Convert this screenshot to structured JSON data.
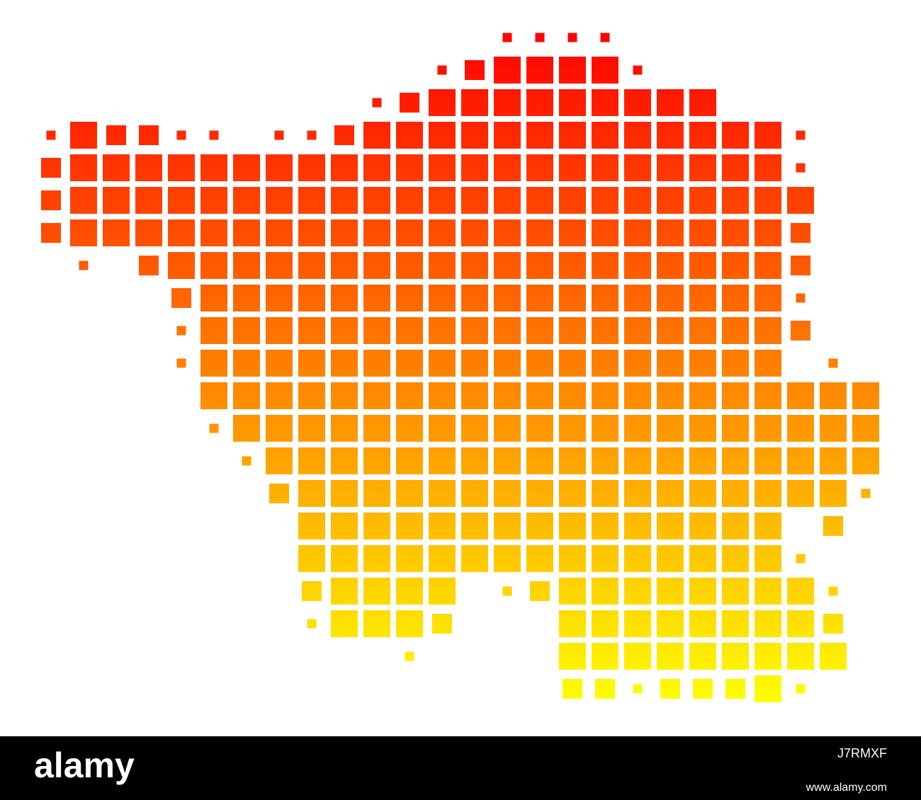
{
  "footer": {
    "logo": "alamy",
    "image_id": "J7RMXF",
    "url": "www.alamy.com"
  }
}
